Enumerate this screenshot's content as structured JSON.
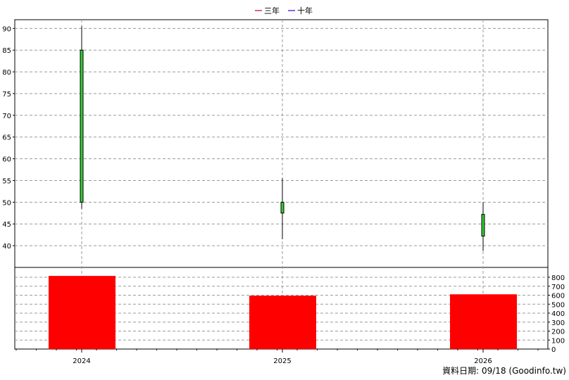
{
  "legend": [
    {
      "label": "三年",
      "color": "#cc3366"
    },
    {
      "label": "十年",
      "color": "#6633cc"
    }
  ],
  "footer": "資料日期: 09/18  (Goodinfo.tw)",
  "chart_data": {
    "type": "candlestick+bar",
    "categories": [
      "2024",
      "2025",
      "2026"
    ],
    "price": {
      "ylim": [
        35,
        92
      ],
      "yticks": [
        40,
        45,
        50,
        55,
        60,
        65,
        70,
        75,
        80,
        85,
        90
      ],
      "candles": [
        {
          "x": "2024",
          "open": 50,
          "close": 85,
          "high": 90.5,
          "low": 48.5
        },
        {
          "x": "2025",
          "open": 47.5,
          "close": 50,
          "high": 55.5,
          "low": 41.5
        },
        {
          "x": "2026",
          "open": 42.2,
          "close": 47.2,
          "high": 50,
          "low": 38.8
        }
      ],
      "candle_color": "#33cc33"
    },
    "volume": {
      "ylim": [
        0,
        800
      ],
      "yticks": [
        0,
        100,
        200,
        300,
        400,
        500,
        600,
        700,
        800
      ],
      "values": [
        815,
        595,
        610
      ],
      "bar_color": "#ff0000"
    },
    "grid": true
  }
}
